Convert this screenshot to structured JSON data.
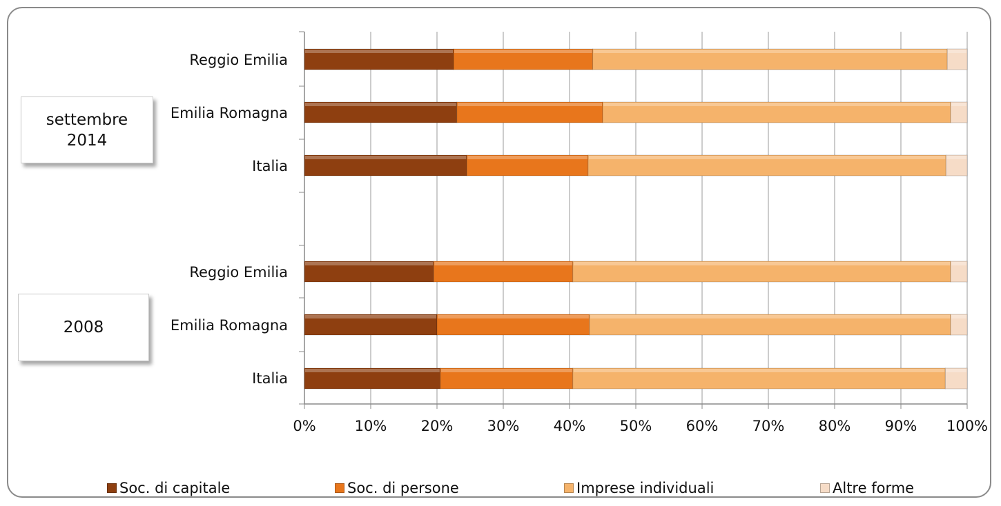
{
  "chart_data": {
    "type": "bar",
    "orientation": "horizontal",
    "stacked": "percent",
    "title": "",
    "xlabel": "",
    "ylabel": "",
    "xlim": [
      0,
      100
    ],
    "x_ticks": [
      "0%",
      "10%",
      "20%",
      "30%",
      "40%",
      "50%",
      "60%",
      "70%",
      "80%",
      "90%",
      "100%"
    ],
    "grid": true,
    "legend_position": "bottom",
    "groups": [
      {
        "label": "settembre\n2014",
        "categories": [
          "Reggio Emilia",
          "Emilia Romagna",
          "Italia"
        ]
      },
      {
        "label": "2008",
        "categories": [
          "Reggio Emilia",
          "Emilia Romagna",
          "Italia"
        ]
      }
    ],
    "series": [
      {
        "name": "Soc. di capitale",
        "color": "#8e3f10",
        "values": [
          [
            22.5,
            23.0,
            24.5
          ],
          [
            19.5,
            20.0,
            20.5
          ]
        ]
      },
      {
        "name": "Soc. di persone",
        "color": "#e8761c",
        "values": [
          [
            21.0,
            22.0,
            18.3
          ],
          [
            21.0,
            23.0,
            20.0
          ]
        ]
      },
      {
        "name": "Imprese individuali",
        "color": "#f5b36b",
        "values": [
          [
            53.5,
            52.5,
            54.0
          ],
          [
            57.0,
            54.5,
            56.2
          ]
        ]
      },
      {
        "name": "Altre forme",
        "color": "#f6dcc7",
        "values": [
          [
            3.0,
            2.5,
            3.2
          ],
          [
            2.5,
            2.5,
            3.3
          ]
        ]
      }
    ]
  }
}
